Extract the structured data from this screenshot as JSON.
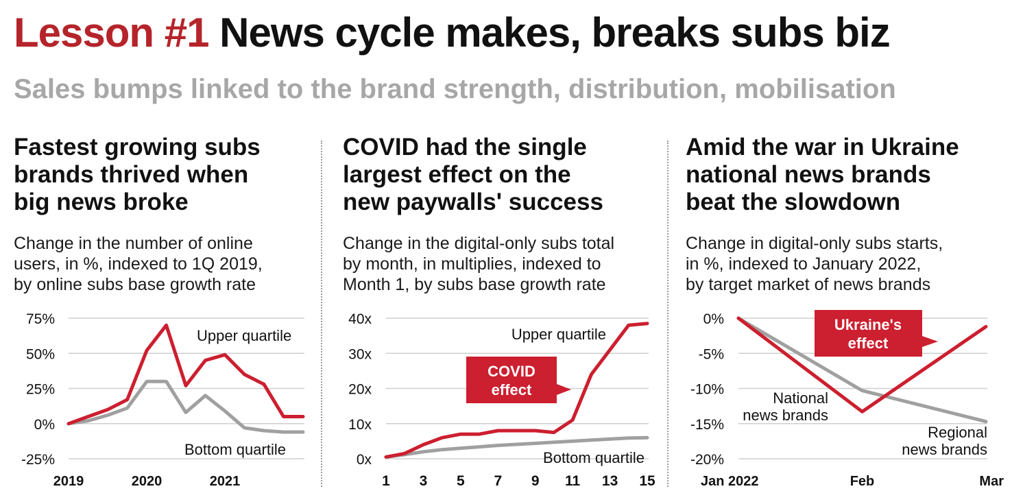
{
  "header": {
    "title_accent": "Lesson #1",
    "title_rest": "News cycle makes, breaks subs biz",
    "subtitle": "Sales bumps linked to the brand strength, distribution, mobilisation"
  },
  "colors": {
    "accent": "#b5242a",
    "series_red": "#cc1f2f",
    "series_grey": "#a0a0a0",
    "grid": "#cfcfcf"
  },
  "panels": [
    {
      "heading": [
        "Fastest growing subs",
        "brands thrived when",
        "big news broke"
      ],
      "description": [
        "Change in the number of online",
        "users, in %, indexed to 1Q 2019,",
        "by online subs base growth rate"
      ]
    },
    {
      "heading": [
        "COVID had the single",
        "largest effect on the",
        "new paywalls' success"
      ],
      "description": [
        "Change in the digital-only subs total",
        "by month, in multiplies, indexed to",
        "Month 1, by subs base growth rate"
      ]
    },
    {
      "heading": [
        "Amid the war in Ukraine",
        "national news brands",
        "beat the slowdown"
      ],
      "description": [
        "Change in digital-only subs starts,",
        "in %, indexed to January 2022,",
        "by target market of news brands"
      ]
    }
  ],
  "chart_data": [
    {
      "type": "line",
      "ylim": [
        -25,
        75
      ],
      "y_ticks": [
        75,
        50,
        25,
        0,
        -25
      ],
      "y_tick_labels": [
        "75%",
        "50%",
        "25%",
        "0%",
        "-25%"
      ],
      "x_tick_labels": [
        "2019",
        "2020",
        "2021"
      ],
      "x": [
        0,
        1,
        2,
        3,
        4,
        5,
        6,
        7,
        8,
        9,
        10,
        11,
        12
      ],
      "xlim": [
        0,
        12
      ],
      "x_tick_positions": [
        0,
        4,
        8
      ],
      "series": [
        {
          "name": "Upper quartile",
          "color": "red",
          "values": [
            0,
            5,
            10,
            17,
            52,
            70,
            27,
            45,
            49,
            35,
            28,
            5,
            5
          ]
        },
        {
          "name": "Bottom quartile",
          "color": "grey",
          "values": [
            0,
            2,
            6,
            11,
            30,
            30,
            8,
            20,
            9,
            -3,
            -5,
            -6,
            -6
          ]
        }
      ]
    },
    {
      "type": "line",
      "ylim": [
        0,
        40
      ],
      "y_ticks": [
        40,
        30,
        20,
        10,
        0
      ],
      "y_tick_labels": [
        "40x",
        "30x",
        "20x",
        "10x",
        "0x"
      ],
      "x_tick_labels": [
        "1",
        "3",
        "5",
        "7",
        "9",
        "11",
        "13",
        "15"
      ],
      "x_tick_positions": [
        1,
        3,
        5,
        7,
        9,
        11,
        13,
        15
      ],
      "xlim": [
        1,
        15
      ],
      "x": [
        1,
        2,
        3,
        4,
        5,
        6,
        7,
        8,
        9,
        10,
        11,
        12,
        13,
        14,
        15
      ],
      "series": [
        {
          "name": "Upper quartile",
          "color": "red",
          "values": [
            0.5,
            1.5,
            4,
            6,
            7,
            7,
            8,
            8,
            8,
            7.5,
            11,
            24,
            31,
            38,
            38.5
          ]
        },
        {
          "name": "Bottom quartile",
          "color": "grey",
          "values": [
            0.5,
            1.2,
            2,
            2.6,
            3,
            3.4,
            3.8,
            4.1,
            4.4,
            4.7,
            5,
            5.3,
            5.6,
            5.9,
            6
          ]
        }
      ],
      "annotation": [
        "COVID",
        "effect"
      ]
    },
    {
      "type": "line",
      "ylim": [
        -20,
        0
      ],
      "y_ticks": [
        0,
        -5,
        -10,
        -15,
        -20
      ],
      "y_tick_labels": [
        "0%",
        "-5%",
        "-10%",
        "-15%",
        "-20%"
      ],
      "x_tick_labels": [
        "Jan 2022",
        "Feb",
        "Mar"
      ],
      "x_tick_positions": [
        0,
        1,
        2
      ],
      "xlim": [
        0,
        2
      ],
      "x": [
        0,
        1,
        2
      ],
      "series": [
        {
          "name": "National news brands",
          "color": "red",
          "values": [
            0,
            -13.3,
            -1.2
          ]
        },
        {
          "name": "Regional news brands",
          "color": "grey",
          "values": [
            0,
            -10.3,
            -14.7
          ]
        }
      ],
      "annotation": [
        "Ukraine's",
        "effect"
      ]
    }
  ]
}
